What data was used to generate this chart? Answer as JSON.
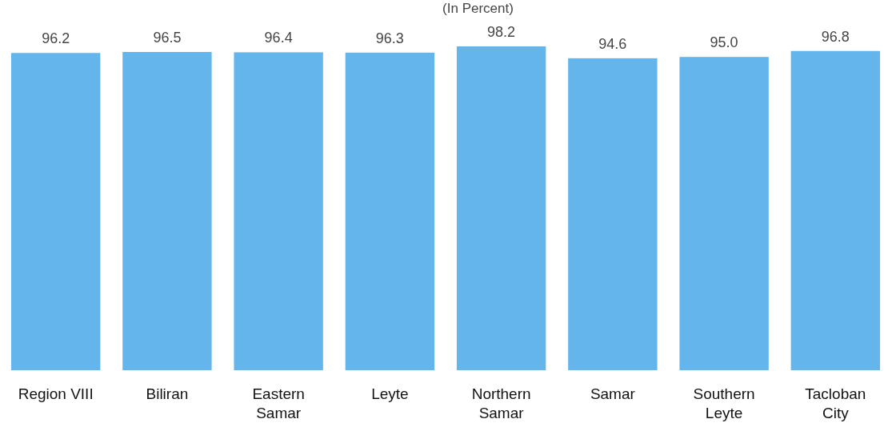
{
  "chart_data": {
    "type": "bar",
    "title": "(In Percent)",
    "categories": [
      "Region VIII",
      "Biliran",
      "Eastern Samar",
      "Leyte",
      "Northern Samar",
      "Samar",
      "Southern Leyte",
      "Tacloban City"
    ],
    "values": [
      96.2,
      96.5,
      96.4,
      96.3,
      98.2,
      94.6,
      95.0,
      96.8
    ],
    "value_labels": [
      "96.2",
      "96.5",
      "96.4",
      "96.3",
      "98.2",
      "94.6",
      "95.0",
      "96.8"
    ],
    "color": "#64b5ec"
  }
}
